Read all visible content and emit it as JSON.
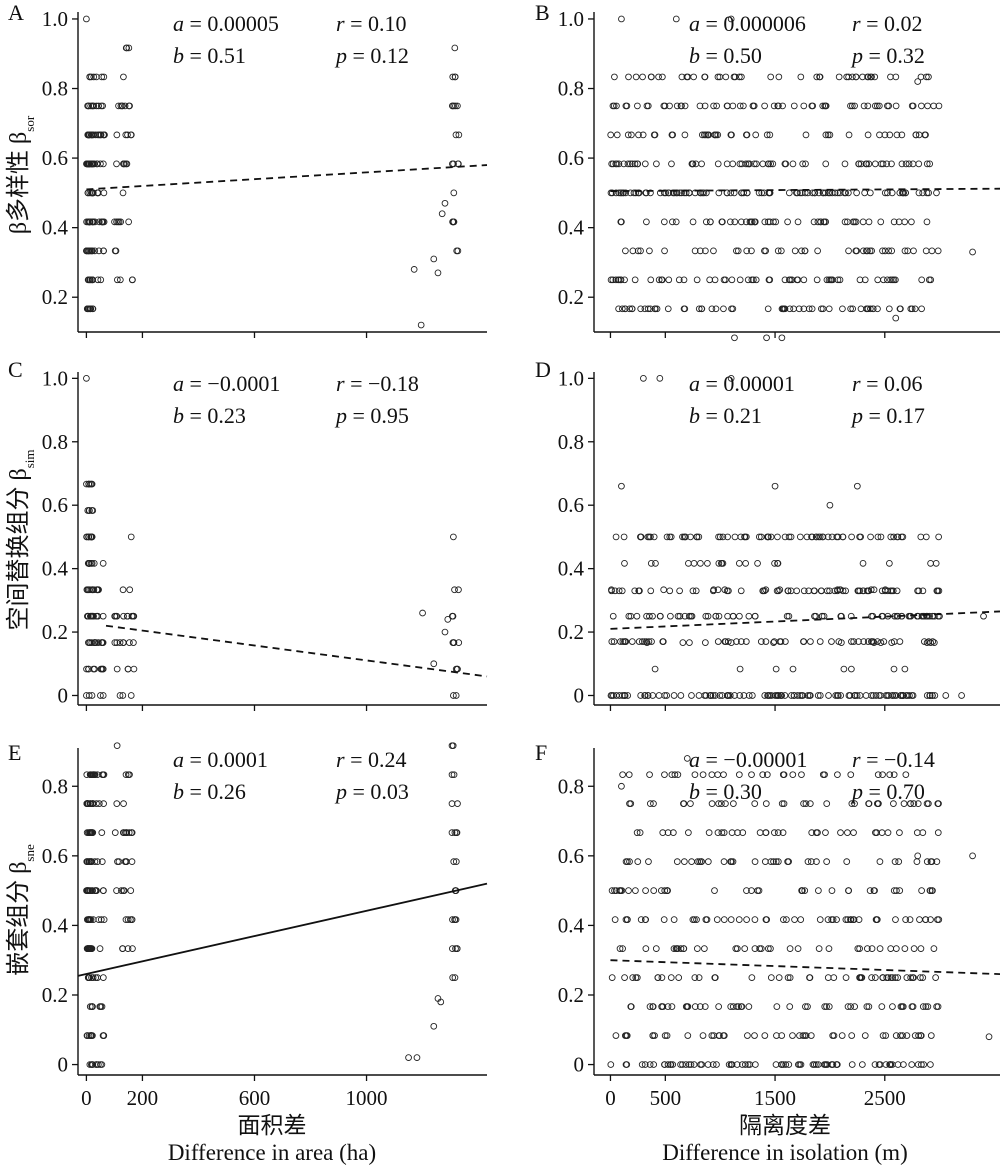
{
  "chart_data": [
    {
      "panel": "A",
      "type": "scatter",
      "ylabel": "β多样性 β",
      "ylabel_sub": "sor",
      "stats": {
        "a": "0.00005",
        "b": "0.51",
        "r": "0.10",
        "p": "0.12"
      },
      "xlim": [
        -30,
        1430
      ],
      "ylim": [
        0.1,
        1.02
      ],
      "yticks": [
        "1.0",
        "0.8",
        "0.6",
        "0.4",
        "0.2"
      ],
      "yticks_num": [
        1.0,
        0.8,
        0.6,
        0.4,
        0.2
      ],
      "xticks_num": [
        0,
        200,
        600,
        1000
      ],
      "fit": {
        "style": "dashed",
        "x": [
          0,
          1430
        ],
        "y": [
          0.51,
          0.58
        ]
      },
      "clusters": [
        {
          "x": [
            0,
            25
          ],
          "y": [
            0.12,
            0.84
          ],
          "n": 90
        },
        {
          "x": [
            25,
            65
          ],
          "y": [
            0.22,
            0.88
          ],
          "n": 40
        },
        {
          "x": [
            100,
            165
          ],
          "y": [
            0.22,
            0.9
          ],
          "n": 35
        },
        {
          "x": [
            1305,
            1330
          ],
          "y": [
            0.35,
            0.91
          ],
          "n": 22
        }
      ],
      "points": [
        [
          0,
          1.0
        ],
        [
          1170,
          0.28
        ],
        [
          1195,
          0.12
        ],
        [
          1240,
          0.31
        ],
        [
          1255,
          0.27
        ],
        [
          1270,
          0.44
        ],
        [
          1280,
          0.47
        ]
      ]
    },
    {
      "panel": "B",
      "type": "scatter",
      "stats": {
        "a": "0.000006",
        "b": "0.50",
        "r": "0.02",
        "p": "0.32"
      },
      "xlim": [
        -150,
        3550
      ],
      "ylim": [
        0.1,
        1.02
      ],
      "yticks": [
        "1.0",
        "0.8",
        "0.6",
        "0.4",
        "0.2"
      ],
      "yticks_num": [
        1.0,
        0.8,
        0.6,
        0.4,
        0.2
      ],
      "xticks_num": [
        0,
        500,
        1500,
        2500
      ],
      "fit": {
        "style": "dashed",
        "x": [
          0,
          3550
        ],
        "y": [
          0.505,
          0.512
        ]
      },
      "clusters": [
        {
          "x": [
            0,
            3000
          ],
          "y": [
            0.12,
            0.85
          ],
          "n": 470
        },
        {
          "x": [
            0,
            3000
          ],
          "y": [
            0.5,
            0.5
          ],
          "n": 40
        }
      ],
      "points": [
        [
          100,
          1.0
        ],
        [
          600,
          1.0
        ],
        [
          1100,
          1.0
        ],
        [
          2800,
          0.82
        ],
        [
          3300,
          0.33
        ],
        [
          2600,
          0.14
        ]
      ]
    },
    {
      "panel": "C",
      "type": "scatter",
      "ylabel": "空间替换组分 β",
      "ylabel_sub": "sim",
      "stats": {
        "a": "−0.0001",
        "b": "0.23",
        "r": "−0.18",
        "p": "0.95"
      },
      "xlim": [
        -30,
        1430
      ],
      "ylim": [
        -0.03,
        1.02
      ],
      "yticks": [
        "1.0",
        "0.8",
        "0.6",
        "0.4",
        "0.2",
        "0"
      ],
      "yticks_num": [
        1.0,
        0.8,
        0.6,
        0.4,
        0.2,
        0
      ],
      "xticks_num": [
        0,
        200,
        600,
        1000
      ],
      "fit": {
        "style": "dashed",
        "x": [
          70,
          1430
        ],
        "y": [
          0.22,
          0.06
        ]
      },
      "clusters": [
        {
          "x": [
            0,
            25
          ],
          "y": [
            0.08,
            0.66
          ],
          "n": 60
        },
        {
          "x": [
            25,
            65
          ],
          "y": [
            0.08,
            0.4
          ],
          "n": 30
        },
        {
          "x": [
            100,
            170
          ],
          "y": [
            0.08,
            0.33
          ],
          "n": 25
        },
        {
          "x": [
            1305,
            1330
          ],
          "y": [
            0.08,
            0.33
          ],
          "n": 12
        }
      ],
      "points": [
        [
          0,
          1.0
        ],
        [
          0,
          0
        ],
        [
          10,
          0
        ],
        [
          20,
          0
        ],
        [
          50,
          0
        ],
        [
          60,
          0
        ],
        [
          120,
          0
        ],
        [
          130,
          0
        ],
        [
          160,
          0
        ],
        [
          160,
          0.5
        ],
        [
          1310,
          0.5
        ],
        [
          1200,
          0.26
        ],
        [
          1240,
          0.1
        ],
        [
          1280,
          0.2
        ],
        [
          1290,
          0.24
        ],
        [
          1310,
          0
        ],
        [
          1320,
          0
        ]
      ]
    },
    {
      "panel": "D",
      "type": "scatter",
      "stats": {
        "a": "0.00001",
        "b": "0.21",
        "r": "0.06",
        "p": "0.17"
      },
      "xlim": [
        -150,
        3550
      ],
      "ylim": [
        -0.03,
        1.02
      ],
      "yticks": [
        "1.0",
        "0.8",
        "0.6",
        "0.4",
        "0.2",
        "0"
      ],
      "yticks_num": [
        1.0,
        0.8,
        0.6,
        0.4,
        0.2,
        0
      ],
      "xticks_num": [
        0,
        500,
        1500,
        2500
      ],
      "fit": {
        "style": "dashed",
        "x": [
          0,
          3550
        ],
        "y": [
          0.21,
          0.265
        ]
      },
      "clusters": [
        {
          "x": [
            0,
            3100
          ],
          "y": [
            0.0,
            0.0
          ],
          "n": 110
        },
        {
          "x": [
            0,
            3000
          ],
          "y": [
            0.5,
            0.5
          ],
          "n": 70
        },
        {
          "x": [
            0,
            3000
          ],
          "y": [
            0.33,
            0.33
          ],
          "n": 60
        },
        {
          "x": [
            0,
            3000
          ],
          "y": [
            0.25,
            0.25
          ],
          "n": 50
        },
        {
          "x": [
            0,
            3000
          ],
          "y": [
            0.17,
            0.17
          ],
          "n": 50
        },
        {
          "x": [
            0,
            3000
          ],
          "y": [
            0.08,
            0.45
          ],
          "n": 70
        }
      ],
      "points": [
        [
          300,
          1.0
        ],
        [
          450,
          1.0
        ],
        [
          1100,
          1.0
        ],
        [
          100,
          0.66
        ],
        [
          1500,
          0.66
        ],
        [
          2250,
          0.66
        ],
        [
          2000,
          0.6
        ],
        [
          3400,
          0.25
        ],
        [
          3200,
          0.0
        ]
      ]
    },
    {
      "panel": "E",
      "type": "scatter",
      "ylabel": "嵌套组分 β",
      "ylabel_sub": "sne",
      "xlabel": "面积差",
      "xlabel_en": "Difference in area (ha)",
      "stats": {
        "a": "0.0001",
        "b": "0.26",
        "r": "0.24",
        "p": "0.03"
      },
      "xlim": [
        -30,
        1430
      ],
      "ylim": [
        -0.03,
        0.91
      ],
      "yticks": [
        "0.8",
        "0.6",
        "0.4",
        "0.2",
        "0"
      ],
      "yticks_num": [
        0.8,
        0.6,
        0.4,
        0.2,
        0
      ],
      "xticks": [
        "0",
        "200",
        "600",
        "1000"
      ],
      "xticks_num": [
        0,
        200,
        600,
        1000
      ],
      "fit": {
        "style": "solid",
        "x": [
          -30,
          1430
        ],
        "y": [
          0.255,
          0.52
        ]
      },
      "clusters": [
        {
          "x": [
            0,
            25
          ],
          "y": [
            0.0,
            0.84
          ],
          "n": 100
        },
        {
          "x": [
            25,
            65
          ],
          "y": [
            0.0,
            0.88
          ],
          "n": 40
        },
        {
          "x": [
            100,
            165
          ],
          "y": [
            0.24,
            0.9
          ],
          "n": 35
        },
        {
          "x": [
            1305,
            1330
          ],
          "y": [
            0.27,
            0.91
          ],
          "n": 25
        }
      ],
      "points": [
        [
          1150,
          0.02
        ],
        [
          1180,
          0.02
        ],
        [
          1240,
          0.11
        ],
        [
          1255,
          0.19
        ],
        [
          1265,
          0.18
        ]
      ]
    },
    {
      "panel": "F",
      "type": "scatter",
      "xlabel": "隔离度差",
      "xlabel_en": "Difference in isolation (m)",
      "stats": {
        "a": "−0.00001",
        "b": "0.30",
        "r": "−0.14",
        "p": "0.70"
      },
      "xlim": [
        -150,
        3550
      ],
      "ylim": [
        -0.03,
        0.91
      ],
      "yticks": [
        "0.8",
        "0.6",
        "0.4",
        "0.2",
        "0"
      ],
      "yticks_num": [
        0.8,
        0.6,
        0.4,
        0.2,
        0
      ],
      "xticks": [
        "0",
        "500",
        "1500",
        "2500"
      ],
      "xticks_num": [
        0,
        500,
        1500,
        2500
      ],
      "fit": {
        "style": "dashed",
        "x": [
          0,
          3550
        ],
        "y": [
          0.3,
          0.26
        ]
      },
      "clusters": [
        {
          "x": [
            0,
            3000
          ],
          "y": [
            0.0,
            0.85
          ],
          "n": 420
        },
        {
          "x": [
            0,
            3000
          ],
          "y": [
            0.0,
            0.0
          ],
          "n": 60
        }
      ],
      "points": [
        [
          3300,
          0.6
        ],
        [
          3450,
          0.08
        ],
        [
          2800,
          0.6
        ],
        [
          100,
          0.8
        ],
        [
          700,
          0.88
        ]
      ]
    }
  ]
}
